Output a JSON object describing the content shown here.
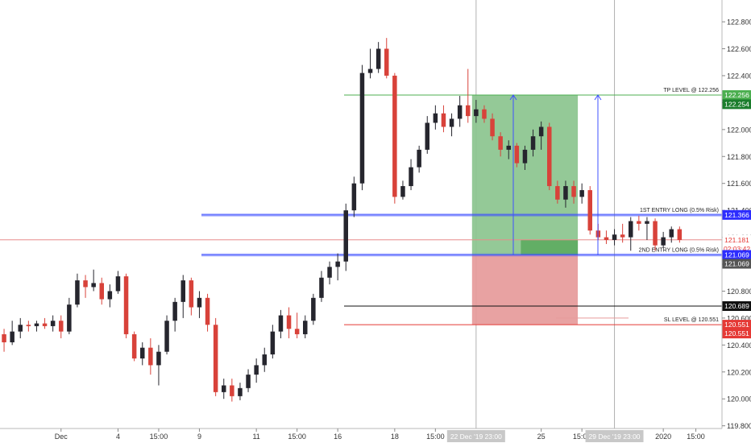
{
  "chart_data": {
    "type": "candlestick",
    "title": "",
    "xlabel": "",
    "ylabel": "",
    "ylim": [
      119.78,
      122.95
    ],
    "grid": true,
    "colors": {
      "up": "#26262e",
      "down": "#d8423a",
      "tp_line": "#4caf50",
      "entry_line": "#3f51ff",
      "sl_line": "#e53935",
      "last_price_line": "#e88b8b",
      "profit_zone": "#8bc48e",
      "loss_zone": "#e69a9a",
      "tick_label": "#333333"
    },
    "y_ticks": [
      "122.800",
      "122.600",
      "122.400",
      "122.200",
      "122.000",
      "121.800",
      "121.600",
      "121.400",
      "121.200",
      "121.000",
      "120.800",
      "120.600",
      "120.400",
      "120.200",
      "120.000",
      "119.800"
    ],
    "x_ticks": [
      {
        "label": "Dec",
        "index": 7
      },
      {
        "label": "4",
        "index": 14
      },
      {
        "label": "15:00",
        "index": 19
      },
      {
        "label": "9",
        "index": 24
      },
      {
        "label": "11",
        "index": 31
      },
      {
        "label": "15:00",
        "index": 36
      },
      {
        "label": "16",
        "index": 41
      },
      {
        "label": "18",
        "index": 48
      },
      {
        "label": "15:00",
        "index": 53
      },
      {
        "label": "25",
        "index": 66
      },
      {
        "label": "15:00",
        "index": 71
      },
      {
        "label": "2020",
        "index": 81
      },
      {
        "label": "15:00",
        "index": 85
      }
    ],
    "crosshair_x_labels": [
      {
        "label": "22 Dec '19 23:00",
        "index": 58
      },
      {
        "label": "29 Dec '19 23:00",
        "index": 75
      }
    ],
    "candles": [
      {
        "o": 120.48,
        "h": 120.52,
        "l": 120.35,
        "c": 120.42
      },
      {
        "o": 120.42,
        "h": 120.58,
        "l": 120.4,
        "c": 120.5
      },
      {
        "o": 120.5,
        "h": 120.6,
        "l": 120.45,
        "c": 120.55
      },
      {
        "o": 120.55,
        "h": 120.58,
        "l": 120.5,
        "c": 120.54
      },
      {
        "o": 120.54,
        "h": 120.58,
        "l": 120.5,
        "c": 120.56
      },
      {
        "o": 120.56,
        "h": 120.6,
        "l": 120.52,
        "c": 120.54
      },
      {
        "o": 120.54,
        "h": 120.62,
        "l": 120.5,
        "c": 120.58
      },
      {
        "o": 120.58,
        "h": 120.62,
        "l": 120.45,
        "c": 120.5
      },
      {
        "o": 120.5,
        "h": 120.75,
        "l": 120.48,
        "c": 120.7
      },
      {
        "o": 120.7,
        "h": 120.93,
        "l": 120.68,
        "c": 120.88
      },
      {
        "o": 120.88,
        "h": 120.92,
        "l": 120.75,
        "c": 120.83
      },
      {
        "o": 120.83,
        "h": 120.96,
        "l": 120.8,
        "c": 120.86
      },
      {
        "o": 120.86,
        "h": 120.9,
        "l": 120.7,
        "c": 120.74
      },
      {
        "o": 120.74,
        "h": 120.85,
        "l": 120.68,
        "c": 120.8
      },
      {
        "o": 120.8,
        "h": 120.95,
        "l": 120.78,
        "c": 120.91
      },
      {
        "o": 120.91,
        "h": 120.93,
        "l": 120.45,
        "c": 120.48
      },
      {
        "o": 120.48,
        "h": 120.5,
        "l": 120.28,
        "c": 120.3
      },
      {
        "o": 120.3,
        "h": 120.42,
        "l": 120.25,
        "c": 120.38
      },
      {
        "o": 120.38,
        "h": 120.45,
        "l": 120.18,
        "c": 120.25
      },
      {
        "o": 120.25,
        "h": 120.4,
        "l": 120.1,
        "c": 120.35
      },
      {
        "o": 120.35,
        "h": 120.62,
        "l": 120.33,
        "c": 120.58
      },
      {
        "o": 120.58,
        "h": 120.75,
        "l": 120.5,
        "c": 120.72
      },
      {
        "o": 120.72,
        "h": 120.92,
        "l": 120.6,
        "c": 120.88
      },
      {
        "o": 120.88,
        "h": 120.9,
        "l": 120.62,
        "c": 120.68
      },
      {
        "o": 120.68,
        "h": 120.8,
        "l": 120.6,
        "c": 120.75
      },
      {
        "o": 120.75,
        "h": 120.78,
        "l": 120.5,
        "c": 120.55
      },
      {
        "o": 120.55,
        "h": 120.6,
        "l": 120.02,
        "c": 120.05
      },
      {
        "o": 120.05,
        "h": 120.15,
        "l": 120.0,
        "c": 120.1
      },
      {
        "o": 120.1,
        "h": 120.15,
        "l": 119.98,
        "c": 120.02
      },
      {
        "o": 120.02,
        "h": 120.12,
        "l": 119.99,
        "c": 120.08
      },
      {
        "o": 120.08,
        "h": 120.22,
        "l": 120.05,
        "c": 120.18
      },
      {
        "o": 120.18,
        "h": 120.3,
        "l": 120.12,
        "c": 120.25
      },
      {
        "o": 120.25,
        "h": 120.38,
        "l": 120.2,
        "c": 120.33
      },
      {
        "o": 120.33,
        "h": 120.55,
        "l": 120.3,
        "c": 120.5
      },
      {
        "o": 120.5,
        "h": 120.66,
        "l": 120.45,
        "c": 120.62
      },
      {
        "o": 120.62,
        "h": 120.68,
        "l": 120.45,
        "c": 120.52
      },
      {
        "o": 120.52,
        "h": 120.64,
        "l": 120.45,
        "c": 120.48
      },
      {
        "o": 120.48,
        "h": 120.62,
        "l": 120.45,
        "c": 120.58
      },
      {
        "o": 120.58,
        "h": 120.78,
        "l": 120.55,
        "c": 120.75
      },
      {
        "o": 120.75,
        "h": 120.95,
        "l": 120.72,
        "c": 120.9
      },
      {
        "o": 120.9,
        "h": 121.02,
        "l": 120.85,
        "c": 120.98
      },
      {
        "o": 120.98,
        "h": 121.08,
        "l": 120.88,
        "c": 121.02
      },
      {
        "o": 121.02,
        "h": 121.45,
        "l": 120.95,
        "c": 121.4
      },
      {
        "o": 121.4,
        "h": 121.65,
        "l": 121.35,
        "c": 121.6
      },
      {
        "o": 121.6,
        "h": 122.48,
        "l": 121.55,
        "c": 122.42
      },
      {
        "o": 122.42,
        "h": 122.6,
        "l": 122.38,
        "c": 122.45
      },
      {
        "o": 122.45,
        "h": 122.65,
        "l": 122.42,
        "c": 122.6
      },
      {
        "o": 122.6,
        "h": 122.68,
        "l": 122.38,
        "c": 122.4
      },
      {
        "o": 122.4,
        "h": 122.42,
        "l": 121.45,
        "c": 121.5
      },
      {
        "o": 121.5,
        "h": 121.62,
        "l": 121.48,
        "c": 121.58
      },
      {
        "o": 121.58,
        "h": 121.78,
        "l": 121.55,
        "c": 121.72
      },
      {
        "o": 121.72,
        "h": 121.88,
        "l": 121.68,
        "c": 121.85
      },
      {
        "o": 121.85,
        "h": 122.1,
        "l": 121.82,
        "c": 122.05
      },
      {
        "o": 122.05,
        "h": 122.18,
        "l": 122.0,
        "c": 122.12
      },
      {
        "o": 122.12,
        "h": 122.18,
        "l": 121.98,
        "c": 122.02
      },
      {
        "o": 122.02,
        "h": 122.12,
        "l": 121.95,
        "c": 122.08
      },
      {
        "o": 122.08,
        "h": 122.25,
        "l": 122.02,
        "c": 122.18
      },
      {
        "o": 122.18,
        "h": 122.45,
        "l": 122.05,
        "c": 122.1
      },
      {
        "o": 122.1,
        "h": 122.22,
        "l": 122.05,
        "c": 122.15
      },
      {
        "o": 122.15,
        "h": 122.18,
        "l": 122.05,
        "c": 122.08
      },
      {
        "o": 122.08,
        "h": 122.12,
        "l": 121.92,
        "c": 121.95
      },
      {
        "o": 121.95,
        "h": 121.98,
        "l": 121.8,
        "c": 121.85
      },
      {
        "o": 121.85,
        "h": 121.92,
        "l": 121.78,
        "c": 121.88
      },
      {
        "o": 121.88,
        "h": 121.9,
        "l": 121.72,
        "c": 121.75
      },
      {
        "o": 121.75,
        "h": 121.88,
        "l": 121.7,
        "c": 121.85
      },
      {
        "o": 121.85,
        "h": 122.0,
        "l": 121.8,
        "c": 121.95
      },
      {
        "o": 121.95,
        "h": 122.06,
        "l": 121.85,
        "c": 122.02
      },
      {
        "o": 122.02,
        "h": 122.05,
        "l": 121.55,
        "c": 121.58
      },
      {
        "o": 121.58,
        "h": 121.62,
        "l": 121.45,
        "c": 121.48
      },
      {
        "o": 121.48,
        "h": 121.62,
        "l": 121.42,
        "c": 121.58
      },
      {
        "o": 121.58,
        "h": 121.62,
        "l": 121.45,
        "c": 121.5
      },
      {
        "o": 121.5,
        "h": 121.6,
        "l": 121.45,
        "c": 121.55
      },
      {
        "o": 121.55,
        "h": 121.58,
        "l": 121.22,
        "c": 121.25
      },
      {
        "o": 121.25,
        "h": 121.3,
        "l": 121.18,
        "c": 121.2
      },
      {
        "o": 121.2,
        "h": 121.25,
        "l": 121.15,
        "c": 121.18
      },
      {
        "o": 121.18,
        "h": 121.26,
        "l": 121.14,
        "c": 121.22
      },
      {
        "o": 121.22,
        "h": 121.3,
        "l": 121.16,
        "c": 121.2
      },
      {
        "o": 121.2,
        "h": 121.35,
        "l": 121.1,
        "c": 121.32
      },
      {
        "o": 121.32,
        "h": 121.36,
        "l": 121.25,
        "c": 121.3
      },
      {
        "o": 121.3,
        "h": 121.35,
        "l": 121.18,
        "c": 121.32
      },
      {
        "o": 121.32,
        "h": 121.34,
        "l": 121.1,
        "c": 121.14
      },
      {
        "o": 121.14,
        "h": 121.24,
        "l": 121.12,
        "c": 121.2
      },
      {
        "o": 121.2,
        "h": 121.28,
        "l": 121.16,
        "c": 121.26
      },
      {
        "o": 121.26,
        "h": 121.28,
        "l": 121.16,
        "c": 121.18
      }
    ],
    "levels": [
      {
        "label": "TP LEVEL @ 122.256",
        "price": 122.256,
        "kind": "tp"
      },
      {
        "label": "1ST ENTRY LONG (0.5% Risk)",
        "price": 121.366,
        "kind": "entry"
      },
      {
        "label": "2ND ENTRY LONG (0.5% Risk)",
        "price": 121.069,
        "kind": "entry"
      },
      {
        "label": "SL LEVEL @ 120.551",
        "price": 120.551,
        "kind": "sl"
      }
    ],
    "extra_level": 120.689,
    "price_badges": [
      {
        "text": "122.256",
        "price": 122.256,
        "bg": "#4caf50",
        "fg": "#ffffff"
      },
      {
        "text": "122.254",
        "price": 122.254,
        "bg": "#1b7d2c",
        "fg": "#ffffff",
        "offset": 1
      },
      {
        "text": "121.366",
        "price": 121.366,
        "bg": "#2d2dff",
        "fg": "#ffffff"
      },
      {
        "text": "121.181",
        "price": 121.181,
        "bg": "#ffffff",
        "fg": "#e53935"
      },
      {
        "text": "02:03:42",
        "price": 121.181,
        "bg": "#ffffff",
        "fg": "#e53935",
        "offset": 1
      },
      {
        "text": "121.069",
        "price": 121.069,
        "bg": "#2d2dff",
        "fg": "#ffffff"
      },
      {
        "text": "121.069",
        "price": 121.069,
        "bg": "#555555",
        "fg": "#ffffff",
        "offset": 1
      },
      {
        "text": "120.689",
        "price": 120.689,
        "bg": "#111111",
        "fg": "#ffffff"
      },
      {
        "text": "120.551",
        "price": 120.551,
        "bg": "#e53935",
        "fg": "#ffffff"
      },
      {
        "text": "120.551",
        "price": 120.551,
        "bg": "#e53935",
        "fg": "#ffffff",
        "offset": 1
      }
    ],
    "trade_zone": {
      "start_index": 58,
      "end_index": 71,
      "tp": 122.256,
      "sl": 120.551,
      "entry": 121.069,
      "active_fill_start_index": 64
    }
  }
}
